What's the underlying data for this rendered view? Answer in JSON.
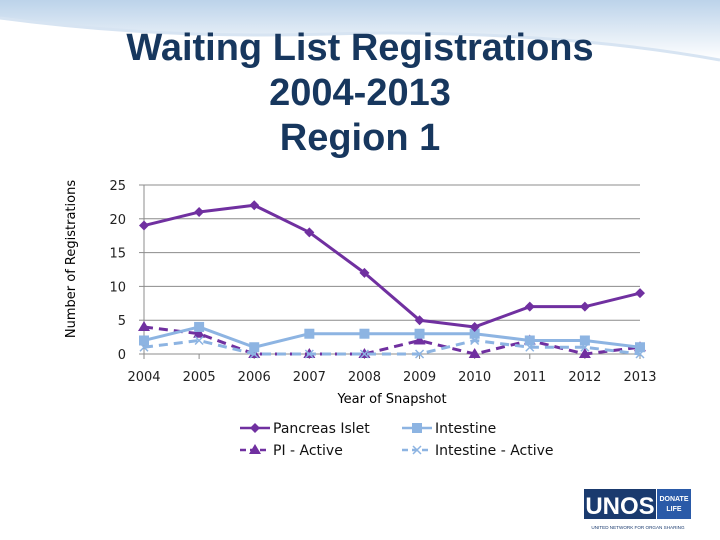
{
  "slide": {
    "title_lines": [
      "Waiting List Registrations",
      "2004-2013",
      "Region 1"
    ],
    "logo": {
      "name": "UNOS",
      "tag": "DONATE LIFE",
      "subtitle": "UNITED NETWORK FOR ORGAN SHARING",
      "colors": {
        "navy": "#1a3a6e",
        "tag_bg": "#2a5aa8"
      }
    }
  },
  "chart_data": {
    "type": "line",
    "title": "Waiting List Registrations 2004-2013 Region 1",
    "xlabel": "Year of Snapshot",
    "ylabel": "Number of Registrations",
    "categories": [
      "2004",
      "2005",
      "2006",
      "2007",
      "2008",
      "2009",
      "2010",
      "2011",
      "2012",
      "2013"
    ],
    "ylim": [
      0,
      25
    ],
    "yticks": [
      "0",
      "5",
      "10",
      "15",
      "20",
      "25"
    ],
    "grid": true,
    "legend_position": "bottom",
    "series": [
      {
        "name": "Pancreas Islet",
        "values": [
          19,
          21,
          22,
          18,
          12,
          5,
          4,
          7,
          7,
          9
        ],
        "color": "#7030a0",
        "marker": "diamond",
        "dash": false
      },
      {
        "name": "Intestine",
        "values": [
          2,
          4,
          1,
          3,
          3,
          3,
          3,
          2,
          2,
          1
        ],
        "color": "#8db4e2",
        "marker": "square",
        "dash": false
      },
      {
        "name": "PI - Active",
        "values": [
          4,
          3,
          0,
          0,
          0,
          2,
          0,
          2,
          0,
          1
        ],
        "color": "#7030a0",
        "marker": "triangle",
        "dash": true
      },
      {
        "name": "Intestine - Active",
        "values": [
          1,
          2,
          0,
          0,
          0,
          0,
          2,
          1,
          1,
          0
        ],
        "color": "#8db4e2",
        "marker": "x",
        "dash": true
      }
    ]
  }
}
